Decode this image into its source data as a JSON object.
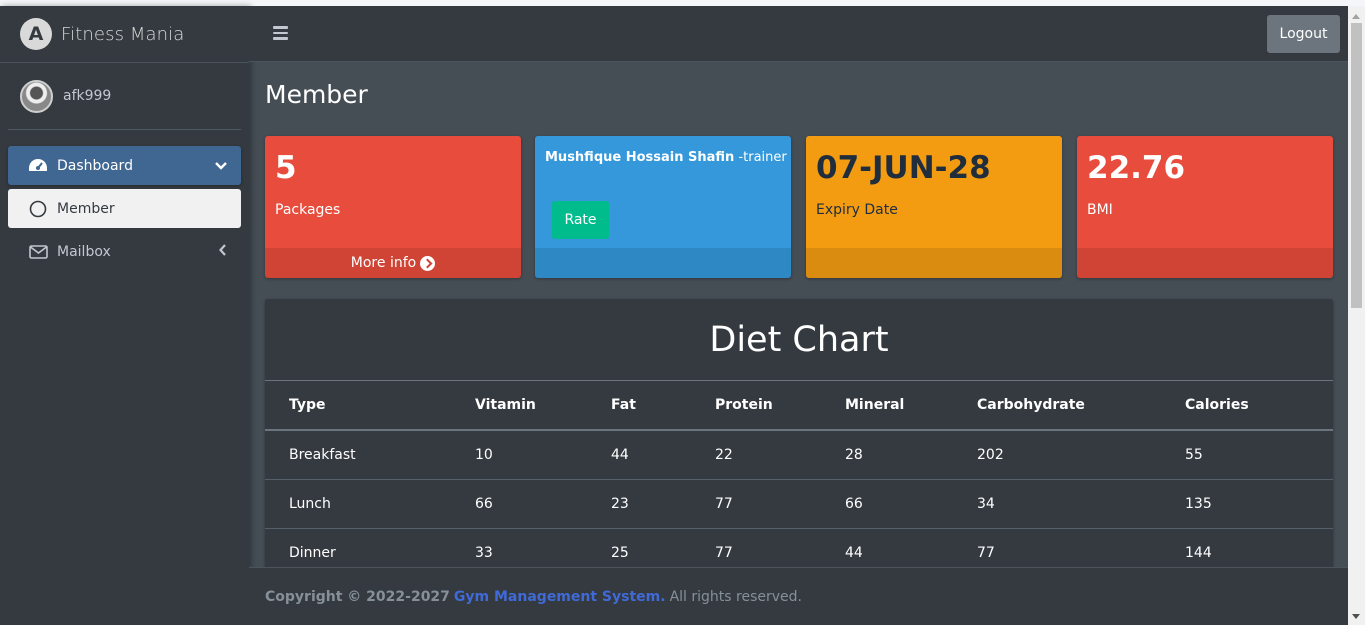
{
  "brand": {
    "name": "Fitness Mania",
    "logo_letter": "A"
  },
  "user": {
    "name": "afk999"
  },
  "sidebar": {
    "items": [
      {
        "label": "Dashboard",
        "icon": "tachometer-icon",
        "state": "active"
      },
      {
        "label": "Member",
        "icon": "circle-icon",
        "state": "sub-active"
      },
      {
        "label": "Mailbox",
        "icon": "envelope-icon",
        "state": "normal"
      }
    ]
  },
  "header": {
    "logout_label": "Logout"
  },
  "page": {
    "title": "Member"
  },
  "boxes": {
    "packages": {
      "value": "5",
      "label": "Packages",
      "footer": "More info",
      "color": "#e74c3c"
    },
    "trainer": {
      "name": "Mushfique Hossain Shafin",
      "role": " -trainer",
      "button": "Rate",
      "color": "#3498db"
    },
    "expiry": {
      "value": "07-JUN-28",
      "label": "Expiry Date",
      "color": "#f39c12"
    },
    "bmi": {
      "value": "22.76",
      "label": "BMI",
      "color": "#e74c3c"
    }
  },
  "diet": {
    "title": "Diet Chart",
    "columns": [
      "Type",
      "Vitamin",
      "Fat",
      "Protein",
      "Mineral",
      "Carbohydrate",
      "Calories"
    ],
    "rows": [
      [
        "Breakfast",
        "10",
        "44",
        "22",
        "28",
        "202",
        "55"
      ],
      [
        "Lunch",
        "66",
        "23",
        "77",
        "66",
        "34",
        "135"
      ],
      [
        "Dinner",
        "33",
        "25",
        "77",
        "44",
        "77",
        "144"
      ]
    ]
  },
  "footer": {
    "copyright": "Copyright © 2022-2027",
    "link": "Gym Management System.",
    "rights": "All rights reserved."
  }
}
